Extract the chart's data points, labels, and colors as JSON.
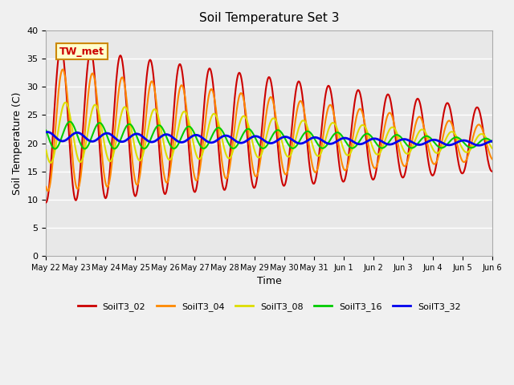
{
  "title": "Soil Temperature Set 3",
  "xlabel": "Time",
  "ylabel": "Soil Temperature (C)",
  "ylim": [
    0,
    40
  ],
  "yticks": [
    0,
    5,
    10,
    15,
    20,
    25,
    30,
    35,
    40
  ],
  "annotation": "TW_met",
  "series": {
    "SoilT3_02": {
      "color": "#cc0000",
      "lw": 1.5
    },
    "SoilT3_04": {
      "color": "#ff8800",
      "lw": 1.5
    },
    "SoilT3_08": {
      "color": "#dddd00",
      "lw": 1.5
    },
    "SoilT3_16": {
      "color": "#00cc00",
      "lw": 1.5
    },
    "SoilT3_32": {
      "color": "#0000ee",
      "lw": 2.0
    }
  },
  "background_color": "#e8e8e8",
  "grid_color": "#ffffff",
  "xtick_labels": [
    "May 22",
    "May 23",
    "May 24",
    "May 25",
    "May 26",
    "May 27",
    "May 28",
    "May 29",
    "May 30",
    "May 31",
    "Jun 1",
    "Jun 2",
    "Jun 3",
    "Jun 4",
    "Jun 5",
    "Jun 6"
  ],
  "legend_colors": [
    "#cc0000",
    "#ff8800",
    "#dddd00",
    "#00cc00",
    "#0000ee"
  ],
  "legend_labels": [
    "SoilT3_02",
    "SoilT3_04",
    "SoilT3_08",
    "SoilT3_16",
    "SoilT3_32"
  ]
}
